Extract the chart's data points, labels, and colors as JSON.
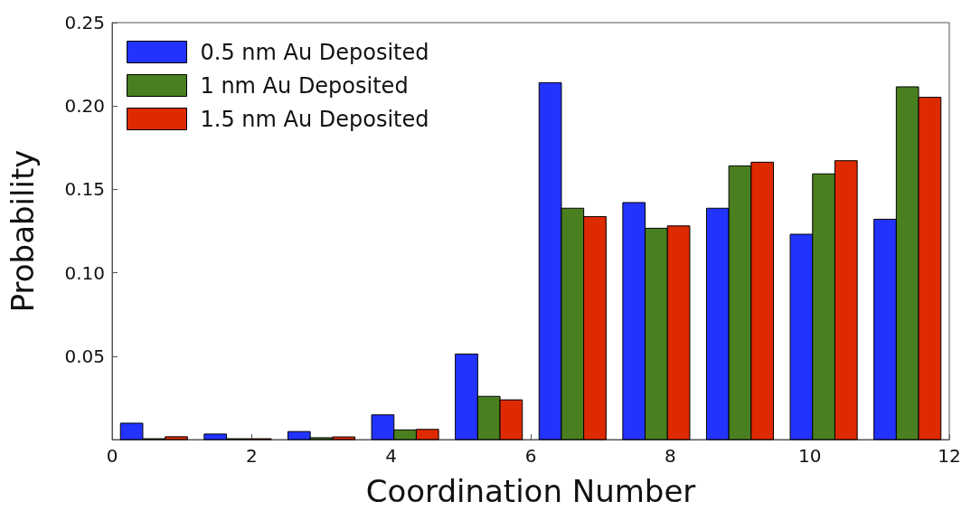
{
  "chart_data": {
    "type": "histogram",
    "xlabel": "Coordination Number",
    "ylabel": "Probability",
    "bins": [
      0,
      1.2,
      2.4,
      3.6,
      4.8,
      6,
      7.2,
      8.4,
      9.6,
      10.8,
      12
    ],
    "series": [
      {
        "name": "0.5 nm Au Deposited",
        "color": "#2233ff",
        "values": [
          0.0098,
          0.0033,
          0.0048,
          0.0148,
          0.0513,
          0.214,
          0.1421,
          0.1387,
          0.1231,
          0.1321
        ]
      },
      {
        "name": "1 nm Au Deposited",
        "color": "#4a7f20",
        "values": [
          0.0005,
          0.0005,
          0.0011,
          0.0058,
          0.0259,
          0.1387,
          0.1267,
          0.1641,
          0.1593,
          0.2115
        ]
      },
      {
        "name": "1.5 nm Au Deposited",
        "color": "#dd2a00",
        "values": [
          0.0017,
          0.0005,
          0.0016,
          0.0061,
          0.0238,
          0.1337,
          0.1281,
          0.1663,
          0.1672,
          0.2052
        ]
      }
    ],
    "xlim": [
      0,
      12
    ],
    "xticks": [
      0,
      2,
      4,
      6,
      8,
      10,
      12
    ],
    "ylim": [
      0,
      0.25
    ],
    "yticks": [
      0.05,
      {
        "value": 0.1,
        "label": "0.10"
      },
      0.15,
      {
        "value": 0.2,
        "label": "0.20"
      },
      0.25
    ],
    "legend": "top left",
    "grid": false
  }
}
